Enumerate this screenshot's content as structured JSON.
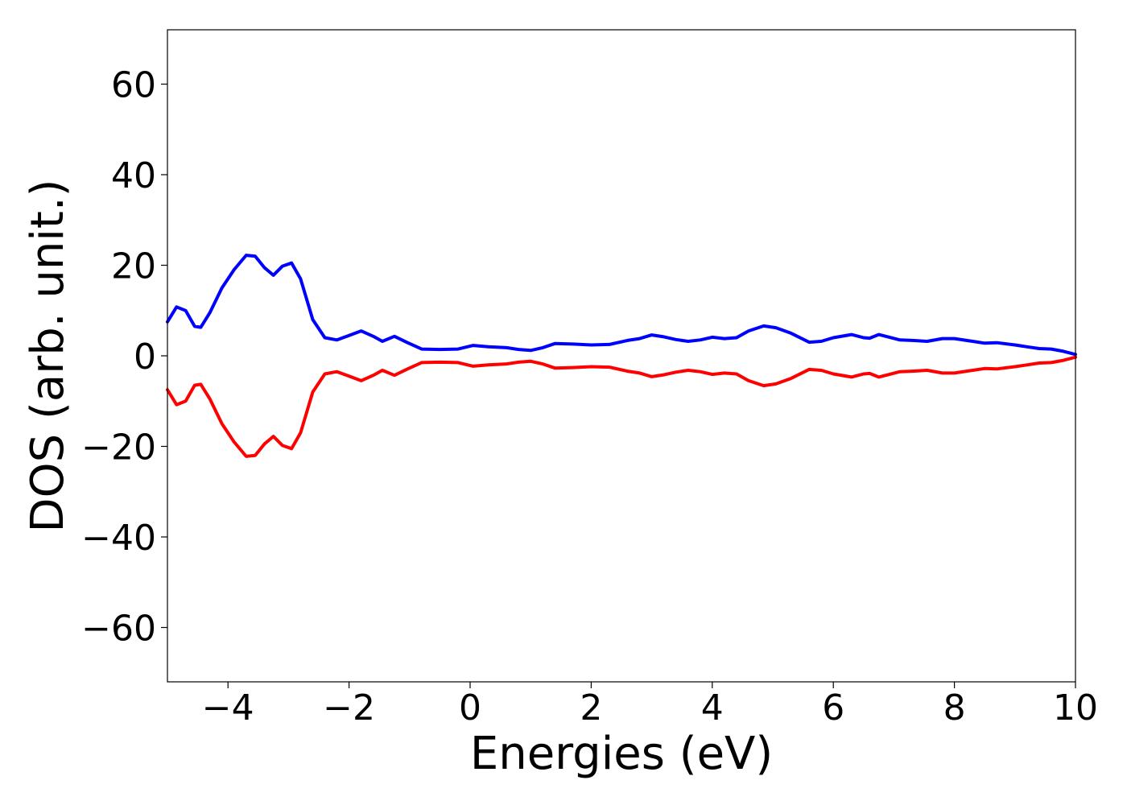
{
  "chart_data": {
    "type": "line",
    "title": "",
    "xlabel": "Energies (eV)",
    "ylabel": "DOS (arb. unit.)",
    "xlim": [
      -5,
      10
    ],
    "ylim": [
      -72,
      72
    ],
    "x_ticks": [
      -4,
      -2,
      0,
      2,
      4,
      6,
      8,
      10
    ],
    "y_ticks": [
      -60,
      -40,
      -20,
      0,
      20,
      40,
      60
    ],
    "x_tick_labels": [
      "−4",
      "−2",
      "0",
      "2",
      "4",
      "6",
      "8",
      "10"
    ],
    "y_tick_labels": [
      "−60",
      "−40",
      "−20",
      "0",
      "20",
      "40",
      "60"
    ],
    "grid": false,
    "legend": "none",
    "series": [
      {
        "color": "#0000ff",
        "points": [
          [
            -5.0,
            7.5
          ],
          [
            -4.85,
            10.8
          ],
          [
            -4.7,
            10.0
          ],
          [
            -4.55,
            6.5
          ],
          [
            -4.45,
            6.3
          ],
          [
            -4.3,
            9.5
          ],
          [
            -4.1,
            15.0
          ],
          [
            -3.9,
            19.0
          ],
          [
            -3.7,
            22.2
          ],
          [
            -3.55,
            22.0
          ],
          [
            -3.4,
            19.5
          ],
          [
            -3.25,
            17.8
          ],
          [
            -3.1,
            19.8
          ],
          [
            -2.95,
            20.5
          ],
          [
            -2.8,
            17.0
          ],
          [
            -2.6,
            8.0
          ],
          [
            -2.4,
            4.0
          ],
          [
            -2.2,
            3.5
          ],
          [
            -2.0,
            4.5
          ],
          [
            -1.8,
            5.5
          ],
          [
            -1.6,
            4.3
          ],
          [
            -1.45,
            3.2
          ],
          [
            -1.25,
            4.3
          ],
          [
            -1.05,
            3.0
          ],
          [
            -0.8,
            1.5
          ],
          [
            -0.5,
            1.4
          ],
          [
            -0.2,
            1.5
          ],
          [
            0.05,
            2.3
          ],
          [
            0.3,
            2.0
          ],
          [
            0.6,
            1.8
          ],
          [
            0.8,
            1.4
          ],
          [
            1.0,
            1.2
          ],
          [
            1.2,
            1.8
          ],
          [
            1.4,
            2.7
          ],
          [
            1.7,
            2.6
          ],
          [
            2.0,
            2.4
          ],
          [
            2.3,
            2.5
          ],
          [
            2.6,
            3.4
          ],
          [
            2.8,
            3.8
          ],
          [
            3.0,
            4.6
          ],
          [
            3.2,
            4.2
          ],
          [
            3.4,
            3.6
          ],
          [
            3.6,
            3.2
          ],
          [
            3.8,
            3.5
          ],
          [
            4.0,
            4.1
          ],
          [
            4.2,
            3.8
          ],
          [
            4.4,
            4.0
          ],
          [
            4.6,
            5.5
          ],
          [
            4.85,
            6.6
          ],
          [
            5.05,
            6.2
          ],
          [
            5.3,
            5.0
          ],
          [
            5.6,
            3.0
          ],
          [
            5.8,
            3.2
          ],
          [
            6.0,
            4.0
          ],
          [
            6.3,
            4.7
          ],
          [
            6.5,
            4.0
          ],
          [
            6.6,
            3.9
          ],
          [
            6.75,
            4.7
          ],
          [
            6.9,
            4.2
          ],
          [
            7.1,
            3.5
          ],
          [
            7.3,
            3.4
          ],
          [
            7.55,
            3.2
          ],
          [
            7.8,
            3.8
          ],
          [
            8.0,
            3.8
          ],
          [
            8.3,
            3.2
          ],
          [
            8.5,
            2.8
          ],
          [
            8.7,
            2.9
          ],
          [
            9.0,
            2.4
          ],
          [
            9.2,
            2.0
          ],
          [
            9.4,
            1.6
          ],
          [
            9.6,
            1.5
          ],
          [
            9.8,
            1.0
          ],
          [
            10.0,
            0.3
          ]
        ]
      },
      {
        "color": "#ff0000",
        "points": [
          [
            -5.0,
            -7.5
          ],
          [
            -4.85,
            -10.8
          ],
          [
            -4.7,
            -10.0
          ],
          [
            -4.55,
            -6.5
          ],
          [
            -4.45,
            -6.3
          ],
          [
            -4.3,
            -9.5
          ],
          [
            -4.1,
            -15.0
          ],
          [
            -3.9,
            -19.0
          ],
          [
            -3.7,
            -22.2
          ],
          [
            -3.55,
            -22.0
          ],
          [
            -3.4,
            -19.5
          ],
          [
            -3.25,
            -17.8
          ],
          [
            -3.1,
            -19.8
          ],
          [
            -2.95,
            -20.5
          ],
          [
            -2.8,
            -17.0
          ],
          [
            -2.6,
            -8.0
          ],
          [
            -2.4,
            -4.0
          ],
          [
            -2.2,
            -3.5
          ],
          [
            -2.0,
            -4.5
          ],
          [
            -1.8,
            -5.5
          ],
          [
            -1.6,
            -4.3
          ],
          [
            -1.45,
            -3.2
          ],
          [
            -1.25,
            -4.3
          ],
          [
            -1.05,
            -3.0
          ],
          [
            -0.8,
            -1.5
          ],
          [
            -0.5,
            -1.4
          ],
          [
            -0.2,
            -1.5
          ],
          [
            0.05,
            -2.3
          ],
          [
            0.3,
            -2.0
          ],
          [
            0.6,
            -1.8
          ],
          [
            0.8,
            -1.4
          ],
          [
            1.0,
            -1.2
          ],
          [
            1.2,
            -1.8
          ],
          [
            1.4,
            -2.7
          ],
          [
            1.7,
            -2.6
          ],
          [
            2.0,
            -2.4
          ],
          [
            2.3,
            -2.5
          ],
          [
            2.6,
            -3.4
          ],
          [
            2.8,
            -3.8
          ],
          [
            3.0,
            -4.6
          ],
          [
            3.2,
            -4.2
          ],
          [
            3.4,
            -3.6
          ],
          [
            3.6,
            -3.2
          ],
          [
            3.8,
            -3.5
          ],
          [
            4.0,
            -4.1
          ],
          [
            4.2,
            -3.8
          ],
          [
            4.4,
            -4.0
          ],
          [
            4.6,
            -5.5
          ],
          [
            4.85,
            -6.6
          ],
          [
            5.05,
            -6.2
          ],
          [
            5.3,
            -5.0
          ],
          [
            5.6,
            -3.0
          ],
          [
            5.8,
            -3.2
          ],
          [
            6.0,
            -4.0
          ],
          [
            6.3,
            -4.7
          ],
          [
            6.5,
            -4.0
          ],
          [
            6.6,
            -3.9
          ],
          [
            6.75,
            -4.7
          ],
          [
            6.9,
            -4.2
          ],
          [
            7.1,
            -3.5
          ],
          [
            7.3,
            -3.4
          ],
          [
            7.55,
            -3.2
          ],
          [
            7.8,
            -3.8
          ],
          [
            8.0,
            -3.8
          ],
          [
            8.3,
            -3.2
          ],
          [
            8.5,
            -2.8
          ],
          [
            8.7,
            -2.9
          ],
          [
            9.0,
            -2.4
          ],
          [
            9.2,
            -2.0
          ],
          [
            9.4,
            -1.6
          ],
          [
            9.6,
            -1.5
          ],
          [
            9.8,
            -1.0
          ],
          [
            10.0,
            -0.3
          ]
        ]
      }
    ]
  }
}
